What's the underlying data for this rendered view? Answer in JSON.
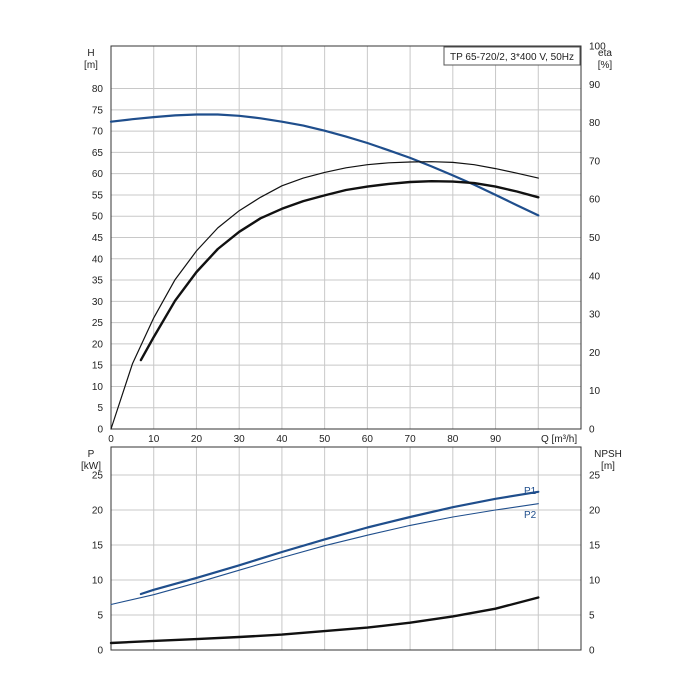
{
  "chart_data": [
    {
      "type": "line",
      "title": "TP 65-720/2, 3*400 V, 50Hz",
      "ylabel": "H",
      "ylabel_unit": "[m]",
      "y2label": "eta",
      "y2label_unit": "[%]",
      "xlabel": "Q [m³/h]",
      "xlim": [
        0,
        110
      ],
      "ylim": [
        0,
        90
      ],
      "y2lim": [
        0,
        100
      ],
      "x_ticks": [
        0,
        10,
        20,
        30,
        40,
        50,
        60,
        70,
        80,
        90
      ],
      "y_ticks": [
        0,
        5,
        10,
        15,
        20,
        25,
        30,
        35,
        40,
        45,
        50,
        55,
        60,
        65,
        70,
        75,
        80
      ],
      "y2_ticks": [
        0,
        10,
        20,
        30,
        40,
        50,
        60,
        70,
        80,
        90,
        100
      ],
      "grid": true,
      "series": [
        {
          "axis": "left",
          "color": "#1f4e8c",
          "width": 2.2,
          "x": [
            0,
            5,
            10,
            15,
            20,
            25,
            30,
            35,
            40,
            45,
            50,
            55,
            60,
            65,
            70,
            75,
            80,
            85,
            90,
            95,
            100
          ],
          "y": [
            72.2,
            72.8,
            73.3,
            73.7,
            73.9,
            73.9,
            73.6,
            73.0,
            72.2,
            71.3,
            70.1,
            68.7,
            67.2,
            65.5,
            63.7,
            61.7,
            59.6,
            57.4,
            55.0,
            52.6,
            50.2
          ]
        },
        {
          "axis": "right",
          "color": "#111111",
          "width": 1.2,
          "x": [
            0,
            5,
            10,
            15,
            20,
            25,
            30,
            35,
            40,
            45,
            50,
            55,
            60,
            65,
            70,
            75,
            80,
            85,
            90,
            95,
            100
          ],
          "y": [
            0,
            17,
            29,
            39,
            46.5,
            52.5,
            57,
            60.5,
            63.5,
            65.5,
            67,
            68.2,
            69,
            69.5,
            69.7,
            69.8,
            69.6,
            69,
            68,
            66.8,
            65.5
          ]
        },
        {
          "axis": "right",
          "color": "#111111",
          "width": 2.4,
          "x": [
            7,
            10,
            15,
            20,
            25,
            30,
            35,
            40,
            45,
            50,
            55,
            60,
            65,
            70,
            75,
            80,
            85,
            90,
            95,
            100
          ],
          "y": [
            18,
            24,
            33.5,
            41,
            47,
            51.5,
            55,
            57.5,
            59.5,
            61,
            62.4,
            63.3,
            64,
            64.5,
            64.7,
            64.6,
            64.2,
            63.3,
            62,
            60.5
          ]
        }
      ]
    },
    {
      "type": "line",
      "ylabel": "P",
      "ylabel_unit": "[kW]",
      "y2label": "NPSH",
      "y2label_unit": "[m]",
      "xlim": [
        0,
        110
      ],
      "ylim": [
        0,
        29
      ],
      "y_ticks": [
        0,
        5,
        10,
        15,
        20,
        25
      ],
      "y2_ticks": [
        0,
        5,
        10,
        15,
        20,
        25
      ],
      "grid": true,
      "series": [
        {
          "name": "P1",
          "axis": "left",
          "color": "#1f4e8c",
          "width": 2.2,
          "x": [
            7,
            10,
            20,
            30,
            40,
            50,
            60,
            70,
            80,
            90,
            100
          ],
          "y": [
            8.0,
            8.6,
            10.3,
            12.1,
            14.0,
            15.8,
            17.5,
            19.0,
            20.4,
            21.6,
            22.6
          ]
        },
        {
          "name": "P2",
          "axis": "left",
          "color": "#1f4e8c",
          "width": 1.1,
          "x": [
            0,
            10,
            20,
            30,
            40,
            50,
            60,
            70,
            80,
            90,
            100
          ],
          "y": [
            6.5,
            7.9,
            9.6,
            11.4,
            13.2,
            14.9,
            16.4,
            17.8,
            19.0,
            20.0,
            20.9
          ]
        },
        {
          "axis": "right",
          "color": "#111111",
          "width": 2.4,
          "x": [
            0,
            10,
            20,
            30,
            40,
            50,
            60,
            70,
            80,
            90,
            100
          ],
          "y": [
            1.0,
            1.3,
            1.55,
            1.85,
            2.2,
            2.7,
            3.2,
            3.9,
            4.8,
            5.9,
            7.5
          ]
        }
      ]
    }
  ]
}
